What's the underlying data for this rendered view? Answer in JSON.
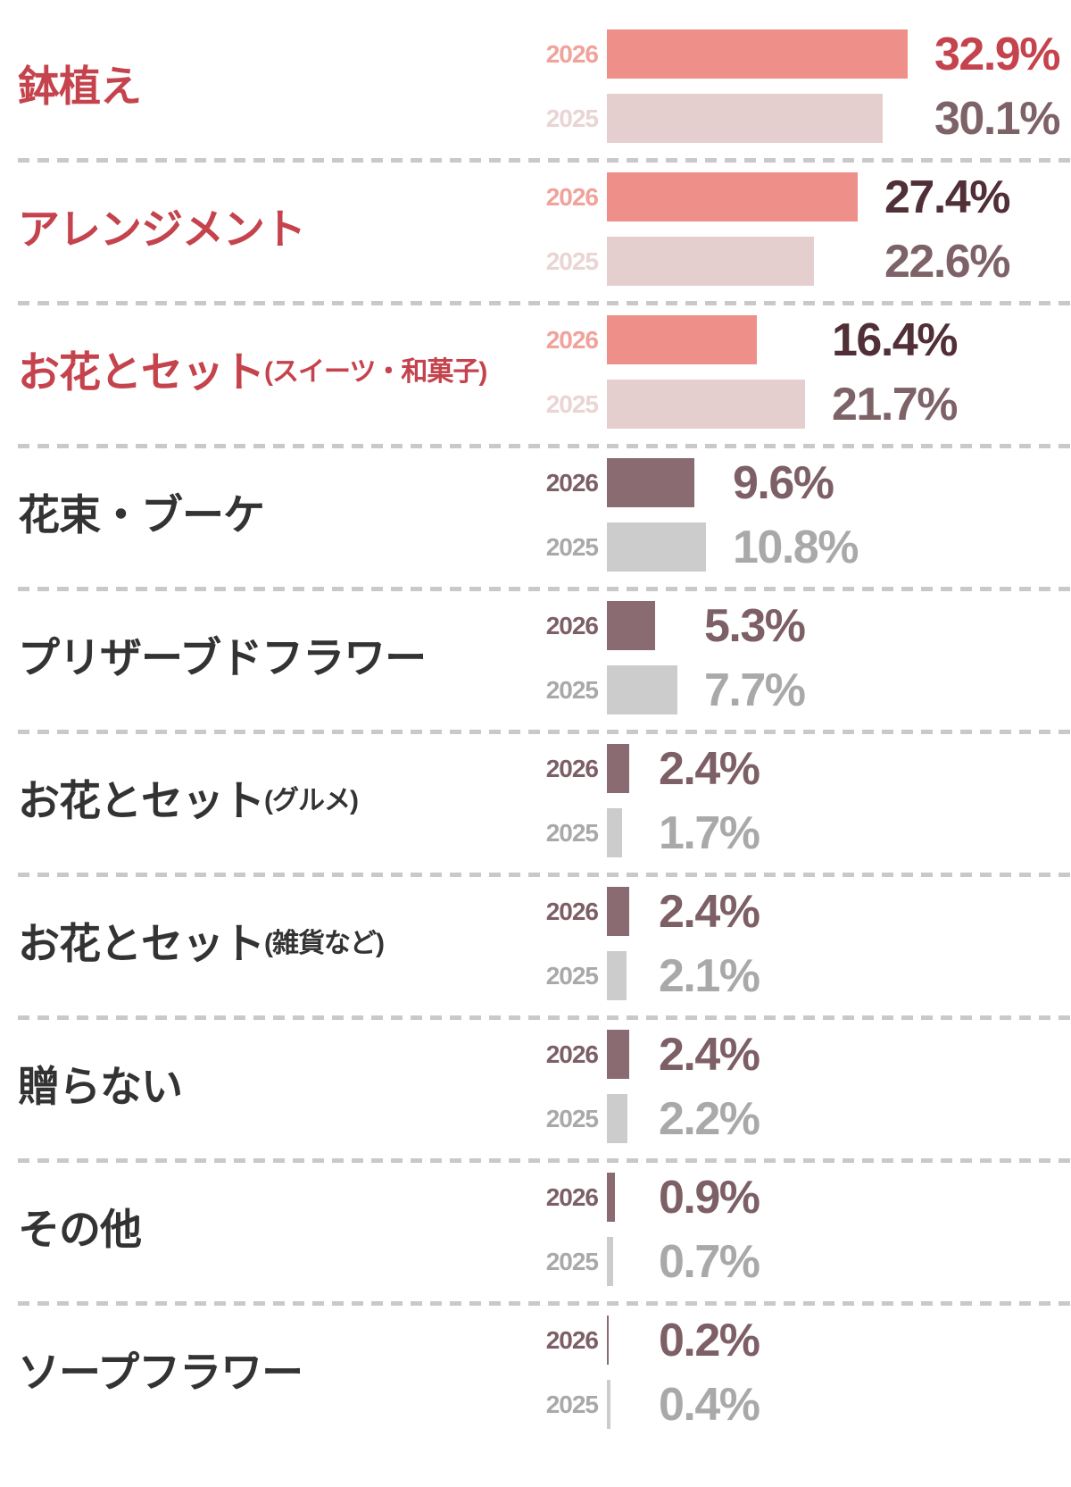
{
  "chart_data": {
    "type": "bar",
    "orientation": "horizontal",
    "value_unit": "%",
    "series": [
      "2026",
      "2025"
    ],
    "axis": {
      "x_min": 0,
      "x_max_implied": 35,
      "ticks_visible": false
    },
    "grid": "dashed horizontal separators between category groups",
    "legend_position": "year label at left of each bar",
    "categories": [
      {
        "label": "鉢植え",
        "note": "",
        "theme": "pink",
        "value_emphasis": "red",
        "values": {
          "2026": 32.9,
          "2025": 30.1
        },
        "value_labels": {
          "2026": "32.9%",
          "2025": "30.1%"
        }
      },
      {
        "label": "アレンジメント",
        "note": "",
        "theme": "pink",
        "value_emphasis": "dark",
        "values": {
          "2026": 27.4,
          "2025": 22.6
        },
        "value_labels": {
          "2026": "27.4%",
          "2025": "22.6%"
        }
      },
      {
        "label": "お花とセット",
        "note": "(スイーツ・和菓子)",
        "theme": "pink",
        "value_emphasis": "dark",
        "values": {
          "2026": 16.4,
          "2025": 21.7
        },
        "value_labels": {
          "2026": "16.4%",
          "2025": "21.7%"
        }
      },
      {
        "label": "花束・ブーケ",
        "note": "",
        "theme": "neutral",
        "value_emphasis": "",
        "values": {
          "2026": 9.6,
          "2025": 10.8
        },
        "value_labels": {
          "2026": "9.6%",
          "2025": "10.8%"
        }
      },
      {
        "label": "プリザーブドフラワー",
        "note": "",
        "theme": "neutral",
        "value_emphasis": "",
        "values": {
          "2026": 5.3,
          "2025": 7.7
        },
        "value_labels": {
          "2026": "5.3%",
          "2025": "7.7%"
        }
      },
      {
        "label": "お花とセット",
        "note": "(グルメ)",
        "theme": "neutral",
        "value_emphasis": "",
        "values": {
          "2026": 2.4,
          "2025": 1.7
        },
        "value_labels": {
          "2026": "2.4%",
          "2025": "1.7%"
        }
      },
      {
        "label": "お花とセット",
        "note": "(雑貨など)",
        "theme": "neutral",
        "value_emphasis": "",
        "values": {
          "2026": 2.4,
          "2025": 2.1
        },
        "value_labels": {
          "2026": "2.4%",
          "2025": "2.1%"
        }
      },
      {
        "label": "贈らない",
        "note": "",
        "theme": "neutral",
        "value_emphasis": "",
        "values": {
          "2026": 2.4,
          "2025": 2.2
        },
        "value_labels": {
          "2026": "2.4%",
          "2025": "2.2%"
        }
      },
      {
        "label": "その他",
        "note": "",
        "theme": "neutral",
        "value_emphasis": "",
        "values": {
          "2026": 0.9,
          "2025": 0.7
        },
        "value_labels": {
          "2026": "0.9%",
          "2025": "0.7%"
        }
      },
      {
        "label": "ソープフラワー",
        "note": "",
        "theme": "neutral",
        "value_emphasis": "",
        "values": {
          "2026": 0.2,
          "2025": 0.4
        },
        "value_labels": {
          "2026": "0.2%",
          "2025": "0.4%"
        }
      }
    ],
    "colors": {
      "accent_red": "#c5434d",
      "dark_maroon_value": "#512f37",
      "category_label_default": "#333333",
      "separator": "#c9c9c9",
      "background": "#ffffff",
      "themes": {
        "pink": {
          "bar_2026": "#ee9089",
          "bar_2025": "#e5cfce",
          "year_2026": "#f0a29b",
          "year_2025": "#e9d5d3",
          "value_2026": "#c5434d",
          "value_2025": "#7d6367"
        },
        "neutral": {
          "bar_2026": "#8a6b72",
          "bar_2025": "#cccccc",
          "year_2026": "#7d5f66",
          "year_2025": "#a9a9a9",
          "value_2026": "#7d5f66",
          "value_2025": "#a9a9a9"
        }
      }
    }
  }
}
